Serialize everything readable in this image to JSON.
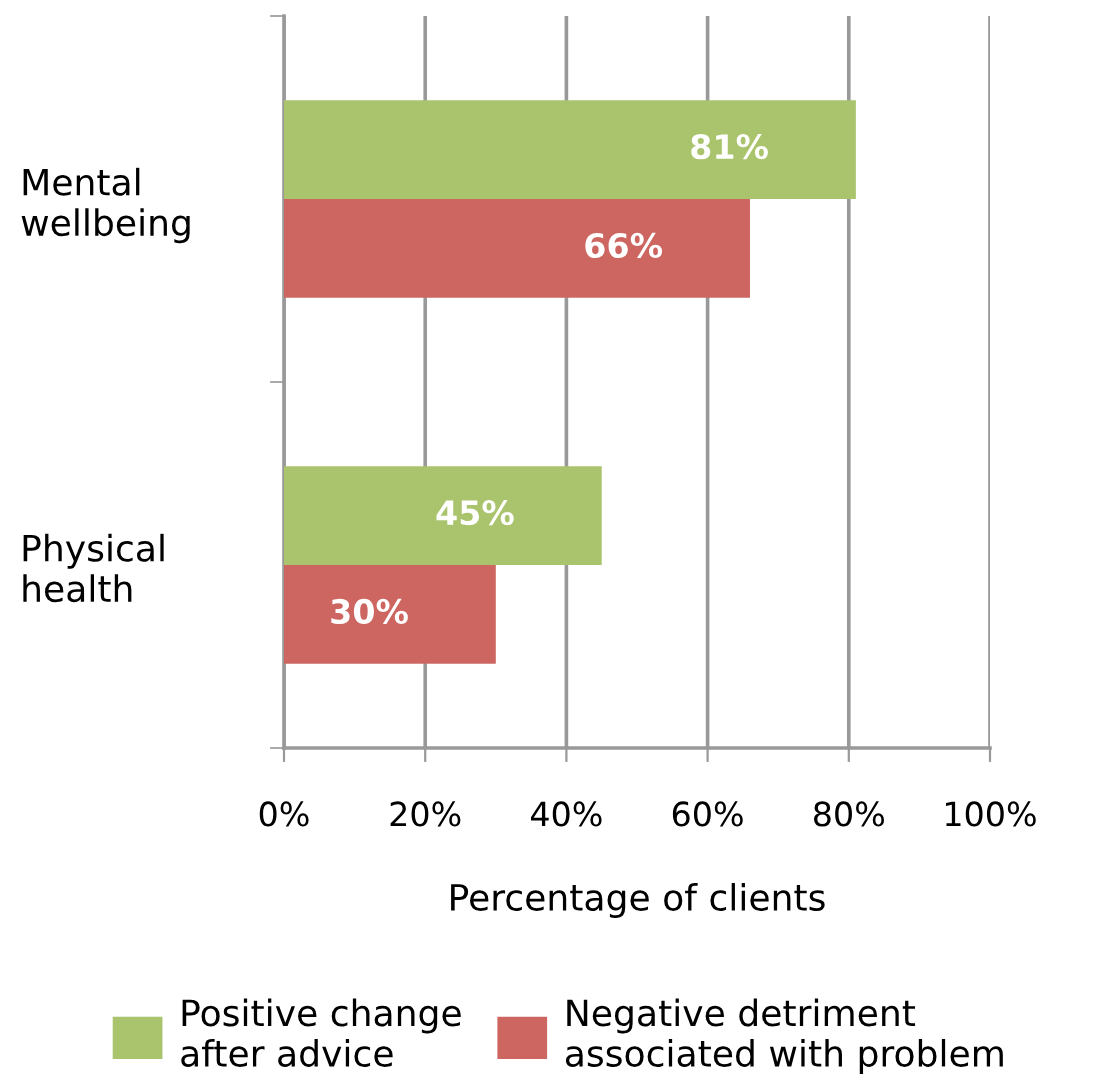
{
  "chart_data": {
    "type": "bar",
    "orientation": "horizontal",
    "categories": [
      "Mental wellbeing",
      "Physical health"
    ],
    "series": [
      {
        "name": "Positive change after advice",
        "color": "#a9c46c",
        "values": [
          81,
          45
        ],
        "value_labels": [
          "81%",
          "45%"
        ]
      },
      {
        "name": "Negative detriment associated with problem",
        "color": "#cd6660",
        "values": [
          66,
          30
        ],
        "value_labels": [
          "66%",
          "30%"
        ]
      }
    ],
    "xlabel": "Percentage of clients",
    "xlim": [
      0,
      100
    ],
    "xticks": [
      {
        "value": 0,
        "label": "0%"
      },
      {
        "value": 20,
        "label": "20%"
      },
      {
        "value": 40,
        "label": "40%"
      },
      {
        "value": 60,
        "label": "60%"
      },
      {
        "value": 80,
        "label": "80%"
      },
      {
        "value": 100,
        "label": "100%"
      }
    ],
    "grid": "x",
    "legend": "bottom"
  }
}
